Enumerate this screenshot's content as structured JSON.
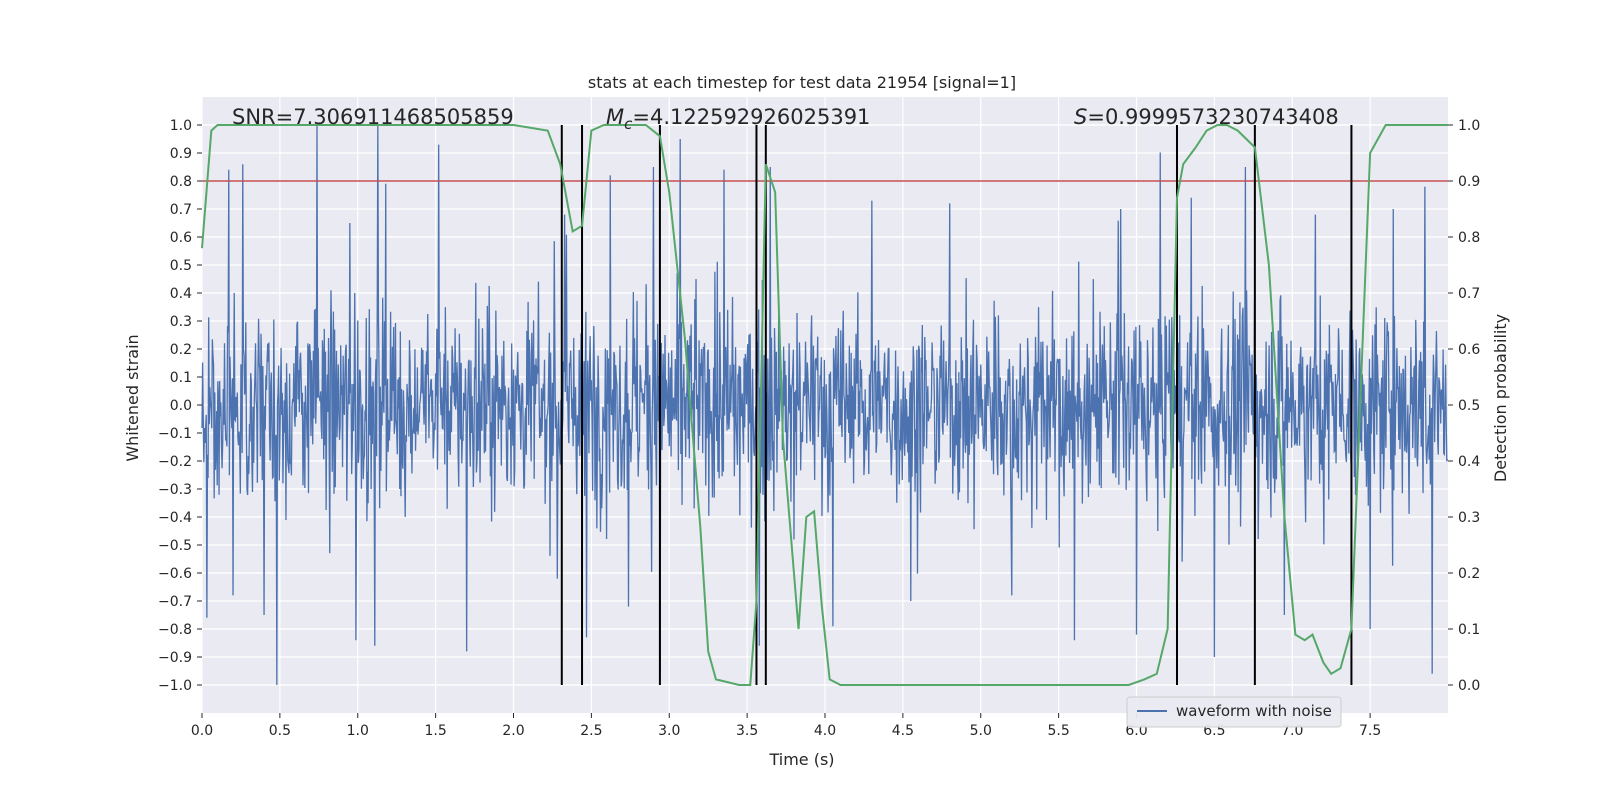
{
  "chart_data": {
    "type": "line",
    "title": "stats at each timestep for test data 21954 [signal=1]",
    "xlabel": "Time (s)",
    "ylabel": "Whitened strain",
    "y2label": "Detection probability",
    "xlim": [
      0.0,
      8.0
    ],
    "ylim": [
      -1.1,
      1.1
    ],
    "y2lim": [
      -0.05,
      1.05
    ],
    "x_ticks": [
      0.0,
      0.5,
      1.0,
      1.5,
      2.0,
      2.5,
      3.0,
      3.5,
      4.0,
      4.5,
      5.0,
      5.5,
      6.0,
      6.5,
      7.0,
      7.5
    ],
    "x_tick_labels": [
      "0.0",
      "0.5",
      "1.0",
      "1.5",
      "2.0",
      "2.5",
      "3.0",
      "3.5",
      "4.0",
      "4.5",
      "5.0",
      "5.5",
      "6.0",
      "6.5",
      "7.0",
      "7.5"
    ],
    "y_ticks": [
      -1.0,
      -0.9,
      -0.8,
      -0.7,
      -0.6,
      -0.5,
      -0.4,
      -0.3,
      -0.2,
      -0.1,
      0.0,
      0.1,
      0.2,
      0.3,
      0.4,
      0.5,
      0.6,
      0.7,
      0.8,
      0.9,
      1.0
    ],
    "y_tick_labels": [
      "−1.0",
      "−0.9",
      "−0.8",
      "−0.7",
      "−0.6",
      "−0.5",
      "−0.4",
      "−0.3",
      "−0.2",
      "−0.1",
      "0.0",
      "0.1",
      "0.2",
      "0.3",
      "0.4",
      "0.5",
      "0.6",
      "0.7",
      "0.8",
      "0.9",
      "1.0"
    ],
    "y2_ticks": [
      0.0,
      0.1,
      0.2,
      0.3,
      0.4,
      0.5,
      0.6,
      0.7,
      0.8,
      0.9,
      1.0
    ],
    "y2_tick_labels": [
      "0.0",
      "0.1",
      "0.2",
      "0.3",
      "0.4",
      "0.5",
      "0.6",
      "0.7",
      "0.8",
      "0.9",
      "1.0"
    ],
    "grid": true,
    "legend": {
      "location": "lower-right",
      "entries": [
        "waveform with noise"
      ]
    },
    "annotations": {
      "snr": "SNR=7.306911468505859",
      "mc_symbol": "M",
      "mc_subscript": "c",
      "mc_value": "=4.122592926025391",
      "s_symbol": "S",
      "s_value": "=0.9999573230743408"
    },
    "threshold": {
      "y": 0.8,
      "color": "#c44e52"
    },
    "vlines": [
      2.31,
      2.44,
      2.94,
      3.56,
      3.62,
      6.26,
      6.76,
      7.38
    ],
    "series": [
      {
        "name": "waveform with noise",
        "kind": "noise",
        "color": "#4c72b0",
        "n_samples": 2048,
        "typical_amplitude": 0.34,
        "peaks": [
          {
            "x": 0.03,
            "y": 0.77
          },
          {
            "x": 0.03,
            "y": -0.76
          },
          {
            "x": 0.17,
            "y": 0.84
          },
          {
            "x": 0.2,
            "y": -0.68
          },
          {
            "x": 0.26,
            "y": 0.86
          },
          {
            "x": 0.4,
            "y": -0.75
          },
          {
            "x": 0.48,
            "y": -1.0
          },
          {
            "x": 0.74,
            "y": 1.0
          },
          {
            "x": 0.95,
            "y": 0.65
          },
          {
            "x": 0.99,
            "y": -0.84
          },
          {
            "x": 1.13,
            "y": 1.0
          },
          {
            "x": 1.18,
            "y": 0.79
          },
          {
            "x": 1.11,
            "y": -0.86
          },
          {
            "x": 1.52,
            "y": 0.93
          },
          {
            "x": 1.7,
            "y": -0.88
          },
          {
            "x": 2.28,
            "y": -0.62
          },
          {
            "x": 2.33,
            "y": 0.68
          },
          {
            "x": 2.47,
            "y": -0.83
          },
          {
            "x": 2.62,
            "y": 0.82
          },
          {
            "x": 2.74,
            "y": -0.72
          },
          {
            "x": 2.9,
            "y": 0.85
          },
          {
            "x": 2.94,
            "y": -0.95
          },
          {
            "x": 3.07,
            "y": 0.95
          },
          {
            "x": 3.35,
            "y": 0.84
          },
          {
            "x": 3.58,
            "y": -0.86
          },
          {
            "x": 3.65,
            "y": 0.85
          },
          {
            "x": 3.8,
            "y": -0.48
          },
          {
            "x": 4.05,
            "y": -0.79
          },
          {
            "x": 4.3,
            "y": 0.73
          },
          {
            "x": 4.55,
            "y": -0.7
          },
          {
            "x": 4.8,
            "y": 0.72
          },
          {
            "x": 5.2,
            "y": -0.68
          },
          {
            "x": 5.6,
            "y": -0.84
          },
          {
            "x": 5.9,
            "y": 0.7
          },
          {
            "x": 6.0,
            "y": -0.82
          },
          {
            "x": 6.35,
            "y": 0.74
          },
          {
            "x": 6.5,
            "y": -0.9
          },
          {
            "x": 6.7,
            "y": 0.85
          },
          {
            "x": 6.95,
            "y": -0.75
          },
          {
            "x": 7.15,
            "y": 0.68
          },
          {
            "x": 7.5,
            "y": -0.8
          },
          {
            "x": 7.65,
            "y": 0.7
          },
          {
            "x": 7.85,
            "y": 0.78
          },
          {
            "x": 7.9,
            "y": -0.96
          }
        ]
      },
      {
        "name": "detection probability",
        "kind": "probability",
        "color": "#55a868",
        "axis": "right",
        "x": [
          0.0,
          0.06,
          0.1,
          0.2,
          2.0,
          2.22,
          2.3,
          2.38,
          2.44,
          2.5,
          2.58,
          2.65,
          2.85,
          2.94,
          3.0,
          3.1,
          3.2,
          3.25,
          3.3,
          3.45,
          3.52,
          3.56,
          3.62,
          3.68,
          3.73,
          3.78,
          3.83,
          3.88,
          3.93,
          3.98,
          4.03,
          4.1,
          4.3,
          4.5,
          5.0,
          5.5,
          5.8,
          5.95,
          6.05,
          6.13,
          6.2,
          6.26,
          6.3,
          6.38,
          6.45,
          6.52,
          6.58,
          6.65,
          6.76,
          6.85,
          6.95,
          7.02,
          7.08,
          7.13,
          7.2,
          7.25,
          7.31,
          7.38,
          7.45,
          7.5,
          7.6,
          7.7,
          8.0
        ],
        "values": [
          0.78,
          0.99,
          1.0,
          1.0,
          1.0,
          0.99,
          0.93,
          0.81,
          0.82,
          0.99,
          1.0,
          1.0,
          1.0,
          0.98,
          0.88,
          0.62,
          0.28,
          0.06,
          0.01,
          0.0,
          0.0,
          0.15,
          0.93,
          0.88,
          0.44,
          0.27,
          0.1,
          0.3,
          0.31,
          0.14,
          0.01,
          0.0,
          0.0,
          0.0,
          0.0,
          0.0,
          0.0,
          0.0,
          0.01,
          0.02,
          0.1,
          0.87,
          0.93,
          0.96,
          0.99,
          1.0,
          1.0,
          0.99,
          0.96,
          0.75,
          0.3,
          0.09,
          0.08,
          0.09,
          0.04,
          0.02,
          0.03,
          0.1,
          0.6,
          0.95,
          1.0,
          1.0,
          1.0
        ]
      }
    ]
  }
}
